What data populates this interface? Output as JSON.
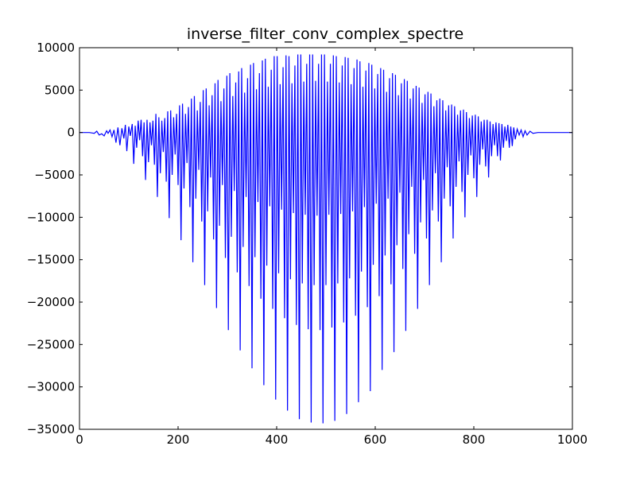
{
  "chart_data": {
    "type": "line",
    "title": "inverse_filter_conv_complex_spectre",
    "xlabel": "",
    "ylabel": "",
    "xlim": [
      0,
      1000
    ],
    "ylim": [
      -35000,
      10000
    ],
    "x_ticks": [
      0,
      200,
      400,
      600,
      800,
      1000
    ],
    "x_tick_labels": [
      "0",
      "200",
      "400",
      "600",
      "800",
      "1000"
    ],
    "y_ticks": [
      10000,
      5000,
      0,
      -5000,
      -10000,
      -15000,
      -20000,
      -25000,
      -30000,
      -35000
    ],
    "y_tick_labels": [
      "10000",
      "5000",
      "0",
      "−5000",
      "−10000",
      "−15000",
      "−20000",
      "−25000",
      "−30000",
      "−35000"
    ],
    "grid": false,
    "legend": "none",
    "series": [
      {
        "color": "#0000ff",
        "points": [
          [
            0,
            0
          ],
          [
            20,
            0
          ],
          [
            30,
            -100
          ],
          [
            35,
            150
          ],
          [
            40,
            -300
          ],
          [
            45,
            -150
          ],
          [
            50,
            -400
          ],
          [
            55,
            200
          ],
          [
            58,
            -100
          ],
          [
            62,
            300
          ],
          [
            66,
            -500
          ],
          [
            70,
            300
          ],
          [
            74,
            -1200
          ],
          [
            78,
            600
          ],
          [
            82,
            -1500
          ],
          [
            86,
            500
          ],
          [
            90,
            -700
          ],
          [
            93,
            900
          ],
          [
            96,
            -2200
          ],
          [
            100,
            700
          ],
          [
            103,
            -400
          ],
          [
            107,
            1000
          ],
          [
            110,
            -3700
          ],
          [
            113,
            800
          ],
          [
            116,
            -1800
          ],
          [
            119,
            1400
          ],
          [
            122,
            -900
          ],
          [
            125,
            1500
          ],
          [
            128,
            -2800
          ],
          [
            131,
            1200
          ],
          [
            134,
            -5600
          ],
          [
            137,
            1500
          ],
          [
            140,
            -3500
          ],
          [
            143,
            1200
          ],
          [
            146,
            -1500
          ],
          [
            149,
            1400
          ],
          [
            152,
            -3800
          ],
          [
            155,
            2200
          ],
          [
            158,
            -7600
          ],
          [
            161,
            1800
          ],
          [
            164,
            -4800
          ],
          [
            167,
            1400
          ],
          [
            170,
            -2300
          ],
          [
            173,
            1700
          ],
          [
            176,
            -5800
          ],
          [
            179,
            2500
          ],
          [
            182,
            -10100
          ],
          [
            185,
            2600
          ],
          [
            188,
            -5000
          ],
          [
            191,
            1800
          ],
          [
            194,
            -2600
          ],
          [
            197,
            2200
          ],
          [
            200,
            -6200
          ],
          [
            203,
            3200
          ],
          [
            206,
            -12700
          ],
          [
            209,
            3400
          ],
          [
            212,
            -6600
          ],
          [
            215,
            2200
          ],
          [
            218,
            -3600
          ],
          [
            221,
            3000
          ],
          [
            224,
            -8800
          ],
          [
            227,
            4000
          ],
          [
            230,
            -15300
          ],
          [
            233,
            4300
          ],
          [
            236,
            -7800
          ],
          [
            239,
            2600
          ],
          [
            242,
            -4400
          ],
          [
            245,
            3600
          ],
          [
            248,
            -10500
          ],
          [
            251,
            5000
          ],
          [
            254,
            -18000
          ],
          [
            257,
            5200
          ],
          [
            260,
            -9300
          ],
          [
            263,
            3200
          ],
          [
            266,
            -5300
          ],
          [
            269,
            4400
          ],
          [
            272,
            -12600
          ],
          [
            275,
            5800
          ],
          [
            278,
            -20700
          ],
          [
            281,
            6200
          ],
          [
            284,
            -11000
          ],
          [
            287,
            3700
          ],
          [
            290,
            -6200
          ],
          [
            293,
            5200
          ],
          [
            296,
            -14800
          ],
          [
            299,
            6700
          ],
          [
            302,
            -23300
          ],
          [
            305,
            7000
          ],
          [
            308,
            -12300
          ],
          [
            311,
            4300
          ],
          [
            314,
            -6900
          ],
          [
            317,
            5900
          ],
          [
            320,
            -16500
          ],
          [
            323,
            7200
          ],
          [
            326,
            -25700
          ],
          [
            329,
            7600
          ],
          [
            332,
            -13500
          ],
          [
            335,
            4700
          ],
          [
            338,
            -7600
          ],
          [
            341,
            6400
          ],
          [
            344,
            -18100
          ],
          [
            347,
            8000
          ],
          [
            350,
            -27800
          ],
          [
            353,
            8200
          ],
          [
            356,
            -14700
          ],
          [
            359,
            5100
          ],
          [
            362,
            -8200
          ],
          [
            365,
            7000
          ],
          [
            368,
            -19600
          ],
          [
            371,
            8500
          ],
          [
            374,
            -29800
          ],
          [
            377,
            8700
          ],
          [
            380,
            -15700
          ],
          [
            383,
            5400
          ],
          [
            386,
            -8700
          ],
          [
            389,
            7400
          ],
          [
            392,
            -20800
          ],
          [
            395,
            9000
          ],
          [
            398,
            -31500
          ],
          [
            401,
            9000
          ],
          [
            404,
            -16600
          ],
          [
            407,
            5700
          ],
          [
            410,
            -9100
          ],
          [
            413,
            7700
          ],
          [
            416,
            -21900
          ],
          [
            419,
            9100
          ],
          [
            422,
            -32800
          ],
          [
            425,
            9000
          ],
          [
            428,
            -17300
          ],
          [
            431,
            5800
          ],
          [
            434,
            -9500
          ],
          [
            437,
            7900
          ],
          [
            440,
            -22700
          ],
          [
            443,
            9200
          ],
          [
            446,
            -33800
          ],
          [
            449,
            9200
          ],
          [
            452,
            -17800
          ],
          [
            455,
            6000
          ],
          [
            458,
            -9700
          ],
          [
            461,
            8100
          ],
          [
            464,
            -23200
          ],
          [
            467,
            9200
          ],
          [
            470,
            -34200
          ],
          [
            473,
            9200
          ],
          [
            476,
            -18000
          ],
          [
            479,
            6100
          ],
          [
            482,
            -9800
          ],
          [
            485,
            8100
          ],
          [
            488,
            -23300
          ],
          [
            491,
            9200
          ],
          [
            494,
            -34300
          ],
          [
            497,
            9200
          ],
          [
            500,
            -18000
          ],
          [
            503,
            6000
          ],
          [
            506,
            -9700
          ],
          [
            509,
            8100
          ],
          [
            512,
            -23000
          ],
          [
            515,
            9100
          ],
          [
            518,
            -34000
          ],
          [
            521,
            9000
          ],
          [
            524,
            -17800
          ],
          [
            527,
            5900
          ],
          [
            530,
            -9600
          ],
          [
            533,
            7900
          ],
          [
            536,
            -22400
          ],
          [
            539,
            8900
          ],
          [
            542,
            -33200
          ],
          [
            545,
            8800
          ],
          [
            548,
            -17200
          ],
          [
            551,
            5700
          ],
          [
            554,
            -9300
          ],
          [
            557,
            7600
          ],
          [
            560,
            -21600
          ],
          [
            563,
            8600
          ],
          [
            566,
            -31800
          ],
          [
            569,
            8400
          ],
          [
            572,
            -16400
          ],
          [
            575,
            5400
          ],
          [
            578,
            -8800
          ],
          [
            581,
            7300
          ],
          [
            584,
            -20600
          ],
          [
            587,
            8200
          ],
          [
            590,
            -30500
          ],
          [
            593,
            8000
          ],
          [
            596,
            -15600
          ],
          [
            599,
            5200
          ],
          [
            602,
            -8400
          ],
          [
            605,
            6900
          ],
          [
            608,
            -19300
          ],
          [
            611,
            7600
          ],
          [
            614,
            -28000
          ],
          [
            617,
            7400
          ],
          [
            620,
            -14500
          ],
          [
            623,
            4800
          ],
          [
            626,
            -7800
          ],
          [
            629,
            6400
          ],
          [
            632,
            -17900
          ],
          [
            635,
            7000
          ],
          [
            638,
            -25900
          ],
          [
            641,
            6800
          ],
          [
            644,
            -13300
          ],
          [
            647,
            4400
          ],
          [
            650,
            -7100
          ],
          [
            653,
            5800
          ],
          [
            656,
            -16100
          ],
          [
            659,
            6300
          ],
          [
            662,
            -23400
          ],
          [
            665,
            6100
          ],
          [
            668,
            -12000
          ],
          [
            671,
            4000
          ],
          [
            674,
            -6400
          ],
          [
            677,
            5200
          ],
          [
            680,
            -14300
          ],
          [
            683,
            5500
          ],
          [
            686,
            -20800
          ],
          [
            689,
            5300
          ],
          [
            692,
            -10600
          ],
          [
            695,
            3500
          ],
          [
            698,
            -5600
          ],
          [
            701,
            4500
          ],
          [
            704,
            -12500
          ],
          [
            707,
            4800
          ],
          [
            710,
            -18000
          ],
          [
            713,
            4600
          ],
          [
            716,
            -9200
          ],
          [
            719,
            3100
          ],
          [
            722,
            -4800
          ],
          [
            725,
            3800
          ],
          [
            728,
            -10500
          ],
          [
            731,
            4000
          ],
          [
            734,
            -15300
          ],
          [
            737,
            3800
          ],
          [
            740,
            -7800
          ],
          [
            743,
            2600
          ],
          [
            746,
            -4100
          ],
          [
            749,
            3200
          ],
          [
            752,
            -8700
          ],
          [
            755,
            3300
          ],
          [
            758,
            -12500
          ],
          [
            761,
            3100
          ],
          [
            764,
            -6400
          ],
          [
            767,
            2100
          ],
          [
            770,
            -3400
          ],
          [
            773,
            2600
          ],
          [
            776,
            -7000
          ],
          [
            779,
            2700
          ],
          [
            782,
            -10000
          ],
          [
            785,
            2400
          ],
          [
            788,
            -5000
          ],
          [
            791,
            1700
          ],
          [
            794,
            -2700
          ],
          [
            797,
            2000
          ],
          [
            800,
            -5400
          ],
          [
            803,
            2100
          ],
          [
            806,
            -7600
          ],
          [
            809,
            1900
          ],
          [
            812,
            -3800
          ],
          [
            815,
            1300
          ],
          [
            818,
            -2000
          ],
          [
            821,
            1500
          ],
          [
            824,
            -4000
          ],
          [
            827,
            1500
          ],
          [
            830,
            -5300
          ],
          [
            833,
            1300
          ],
          [
            836,
            -2800
          ],
          [
            839,
            1000
          ],
          [
            842,
            -1500
          ],
          [
            845,
            1200
          ],
          [
            848,
            -2800
          ],
          [
            851,
            1100
          ],
          [
            854,
            -3300
          ],
          [
            857,
            1000
          ],
          [
            860,
            -1800
          ],
          [
            863,
            700
          ],
          [
            866,
            -1000
          ],
          [
            869,
            900
          ],
          [
            872,
            -1800
          ],
          [
            875,
            700
          ],
          [
            878,
            -1600
          ],
          [
            881,
            600
          ],
          [
            884,
            -800
          ],
          [
            888,
            400
          ],
          [
            892,
            -300
          ],
          [
            896,
            300
          ],
          [
            900,
            -500
          ],
          [
            904,
            200
          ],
          [
            908,
            -300
          ],
          [
            914,
            150
          ],
          [
            920,
            -100
          ],
          [
            930,
            0
          ],
          [
            1000,
            0
          ]
        ]
      }
    ]
  }
}
